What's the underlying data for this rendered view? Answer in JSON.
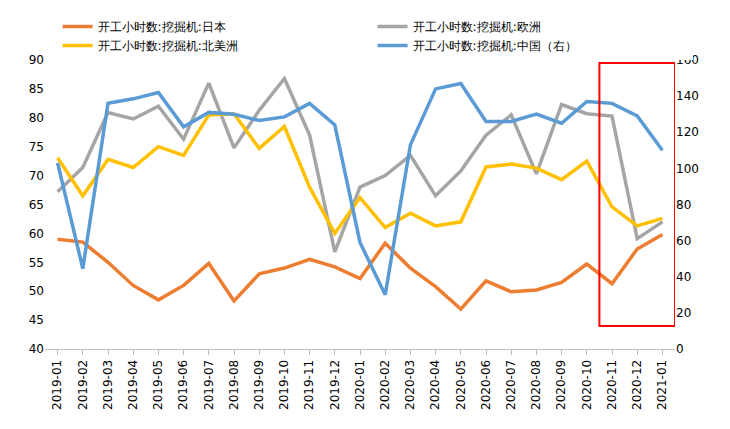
{
  "chart_data": {
    "type": "line",
    "categories": [
      "2019-01",
      "2019-02",
      "2019-03",
      "2019-04",
      "2019-05",
      "2019-06",
      "2019-07",
      "2019-08",
      "2019-09",
      "2019-10",
      "2019-11",
      "2019-12",
      "2020-01",
      "2020-02",
      "2020-03",
      "2020-04",
      "2020-05",
      "2020-06",
      "2020-07",
      "2020-08",
      "2020-09",
      "2020-10",
      "2020-11",
      "2020-12",
      "2021-01"
    ],
    "series": [
      {
        "name": "开工小时数:挖掘机:日本",
        "color": "#ED7D31",
        "values": [
          59,
          58.5,
          55,
          51,
          48.5,
          51,
          54.8,
          48.3,
          53,
          54,
          55.5,
          54.2,
          52.2,
          58.3,
          54,
          50.8,
          46.9,
          51.8,
          49.9,
          50.2,
          51.5,
          54.7,
          51.3,
          57.3,
          59.8
        ]
      },
      {
        "name": "开工小时数:挖掘机:欧洲",
        "color": "#A5A5A5",
        "values": [
          67.2,
          71.4,
          80.9,
          79.8,
          82,
          76.3,
          86,
          74.8,
          81.3,
          86.8,
          77,
          56.8,
          68,
          70,
          73.5,
          66.5,
          70.8,
          77,
          80.5,
          70.3,
          82.3,
          80.7,
          80.3,
          59.1,
          62
        ]
      },
      {
        "name": "开工小时数:挖掘机:北美洲",
        "color": "#FFC000",
        "values": [
          73.1,
          66.5,
          72.8,
          71.4,
          75,
          73.5,
          80.5,
          80.7,
          74.7,
          78.5,
          68,
          60,
          66.2,
          61,
          63.5,
          61.3,
          62,
          71.5,
          72,
          71.3,
          69.3,
          72.5,
          64.6,
          61.3,
          62.6
        ]
      },
      {
        "name": "开工小时数:挖掘机:中国（右）",
        "color": "#5B9BD5",
        "axis": "y2",
        "values": [
          103,
          44.5,
          136,
          138.5,
          142,
          123,
          131,
          130,
          126.5,
          128.5,
          136,
          124,
          59,
          30,
          113,
          144,
          147,
          126,
          126,
          130,
          125,
          137,
          136,
          129,
          110
        ]
      }
    ],
    "ylim": [
      40,
      90
    ],
    "yticks": [
      40,
      45,
      50,
      55,
      60,
      65,
      70,
      75,
      80,
      85,
      90
    ],
    "y2lim": [
      0,
      160
    ],
    "y2ticks": [
      0,
      20,
      40,
      60,
      80,
      100,
      120,
      140,
      160
    ],
    "grid": false,
    "legend": "top"
  }
}
